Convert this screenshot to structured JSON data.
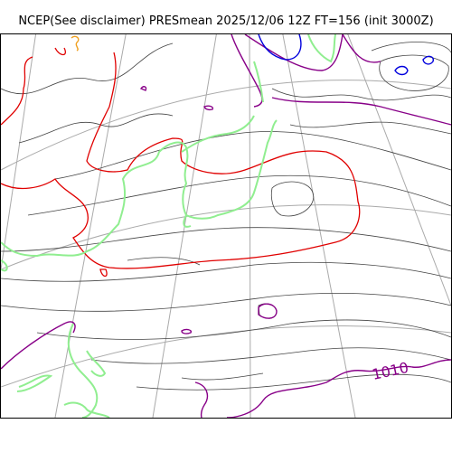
{
  "title": "NCEP(See disclaimer) PRESmean 2025/12/06 12Z FT=156 (init 3000Z)",
  "map": {
    "contour_label": "1010",
    "colors": {
      "isobar": "#444444",
      "ridge_1020": "#e00000",
      "low_1010": "#880088",
      "low_1000": "#0000dd",
      "land": "#90ee90",
      "graticule": "#aaaaaa",
      "highlight": "#f0a020"
    }
  }
}
